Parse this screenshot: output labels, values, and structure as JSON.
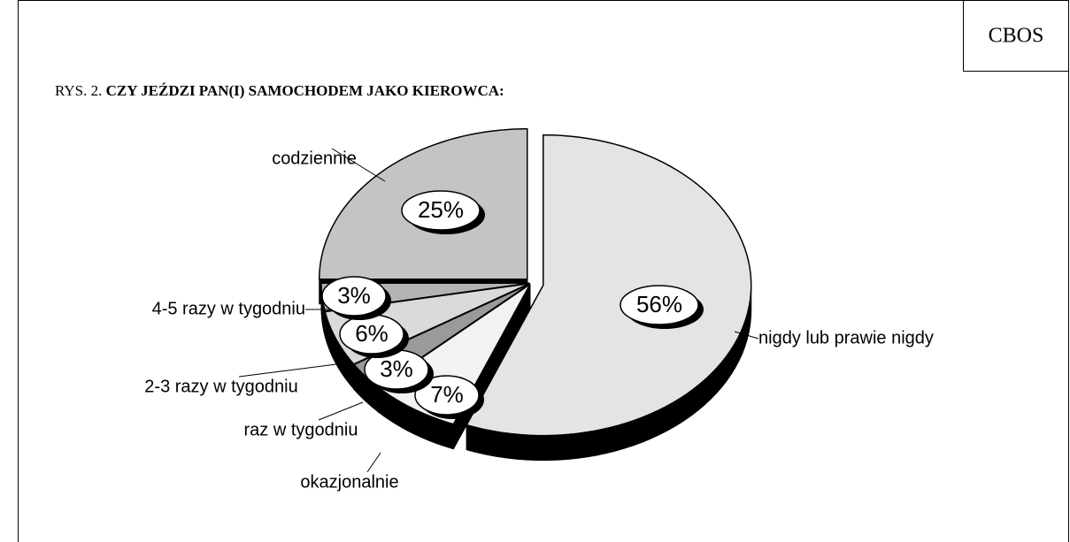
{
  "source": "CBOS",
  "chart_data": {
    "type": "pie",
    "figure_label": "RYS. 2.",
    "title": "CZY JEŹDZI PAN(I) SAMOCHODEM JAKO KIEROWCA:",
    "categories": [
      "nigdy lub prawie nigdy",
      "okazjonalnie",
      "raz w tygodniu",
      "2-3 razy w tygodniu",
      "4-5 razy w tygodniu",
      "codziennie"
    ],
    "values": [
      56,
      7,
      3,
      6,
      3,
      25
    ],
    "value_labels": [
      "56%",
      "7%",
      "3%",
      "6%",
      "3%",
      "25%"
    ],
    "colors": [
      "#e4e4e4",
      "#f2f2f2",
      "#9a9a9a",
      "#dadada",
      "#b4b4b4",
      "#c4c4c4"
    ]
  }
}
